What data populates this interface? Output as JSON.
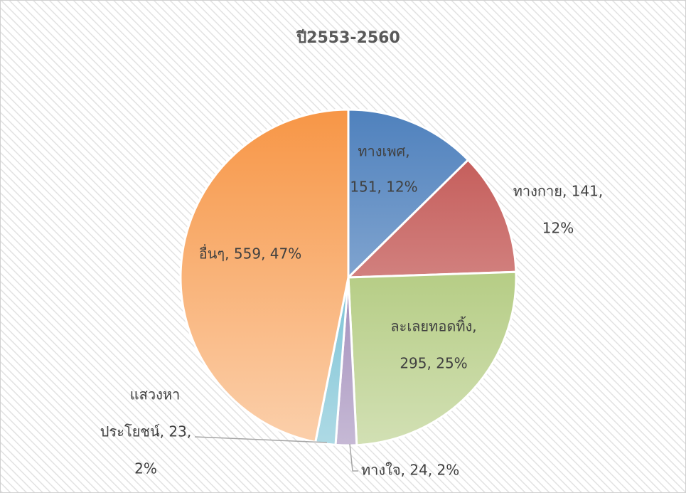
{
  "chart_data": {
    "type": "pie",
    "title": "ปี2553-2560",
    "values": [
      151,
      141,
      295,
      24,
      23,
      559
    ],
    "value_labels": [
      [
        "ทางเพศ,",
        "151, 12%"
      ],
      [
        "ทางกาย, 141,",
        "12%"
      ],
      [
        "ละเลยทอดทิ้ง,",
        "295, 25%"
      ],
      [
        "ทางใจ, 24, 2%"
      ],
      [
        "แสวงหา",
        "ประโยชน์, 23,",
        "2%"
      ],
      [
        "อื่นๆ, 559, 47%"
      ]
    ],
    "colors": [
      "#4f81bd",
      "#c0504d",
      "#9bbb59",
      "#8064a2",
      "#4bacc6",
      "#f79646"
    ]
  }
}
